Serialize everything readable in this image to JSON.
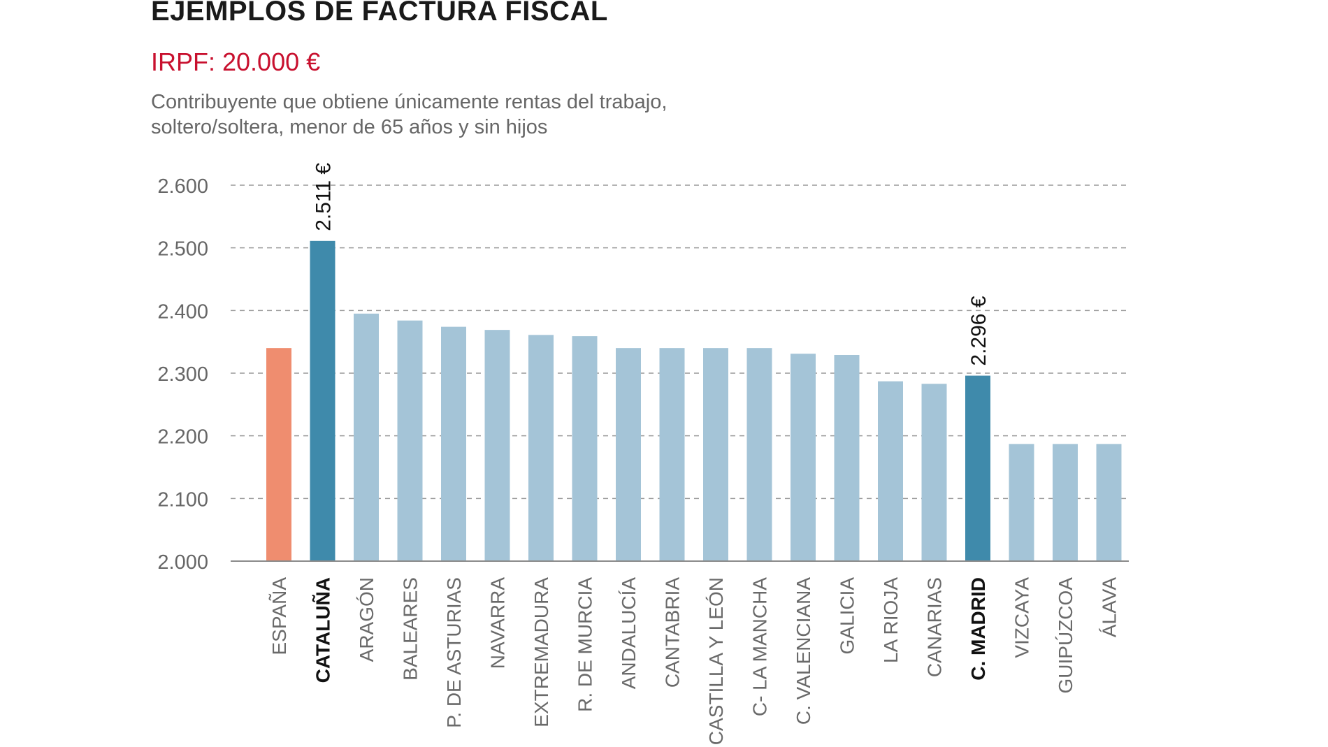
{
  "header": {
    "title": "EJEMPLOS DE FACTURA FISCAL",
    "subtitle": "IRPF: 20.000 €",
    "description_line1": "Contribuyente que obtiene únicamente rentas del trabajo,",
    "description_line2": "soltero/soltera, menor de 65 años y sin hijos"
  },
  "chart_data": {
    "type": "bar",
    "categories": [
      "ESPAÑA",
      "CATALUÑA",
      "ARAGÓN",
      "BALEARES",
      "P. DE ASTURIAS",
      "NAVARRA",
      "EXTREMADURA",
      "R. DE MURCIA",
      "ANDALUCÍA",
      "CANTABRIA",
      "CASTILLA Y LEÓN",
      "C- LA MANCHA",
      "C. VALENCIANA",
      "GALICIA",
      "LA RIOJA",
      "CANARIAS",
      "C. MADRID",
      "VIZCAYA",
      "GUIPÚZCOA",
      "ÁLAVA"
    ],
    "values": [
      2340,
      2511,
      2395,
      2384,
      2374,
      2369,
      2361,
      2359,
      2340,
      2340,
      2340,
      2340,
      2331,
      2329,
      2287,
      2283,
      2296,
      2187,
      2187,
      2187
    ],
    "bold_categories": [
      "CATALUÑA",
      "C. MADRID"
    ],
    "colors": [
      "#ef8d6f",
      "#3f8aab",
      "#a4c4d7",
      "#a4c4d7",
      "#a4c4d7",
      "#a4c4d7",
      "#a4c4d7",
      "#a4c4d7",
      "#a4c4d7",
      "#a4c4d7",
      "#a4c4d7",
      "#a4c4d7",
      "#a4c4d7",
      "#a4c4d7",
      "#a4c4d7",
      "#a4c4d7",
      "#3f8aab",
      "#a4c4d7",
      "#a4c4d7",
      "#a4c4d7"
    ],
    "data_labels": [
      {
        "category": "CATALUÑA",
        "text": "2.511 €"
      },
      {
        "category": "C. MADRID",
        "text": "2.296 €"
      }
    ],
    "ylim": [
      2000,
      2600
    ],
    "yticks": [
      2000,
      2100,
      2200,
      2300,
      2400,
      2500,
      2600
    ],
    "ytick_labels": [
      "2.000",
      "2.100",
      "2.200",
      "2.300",
      "2.400",
      "2.500",
      "2.600"
    ],
    "grid": "dashed-horizontal",
    "xlabel": "",
    "ylabel": ""
  }
}
